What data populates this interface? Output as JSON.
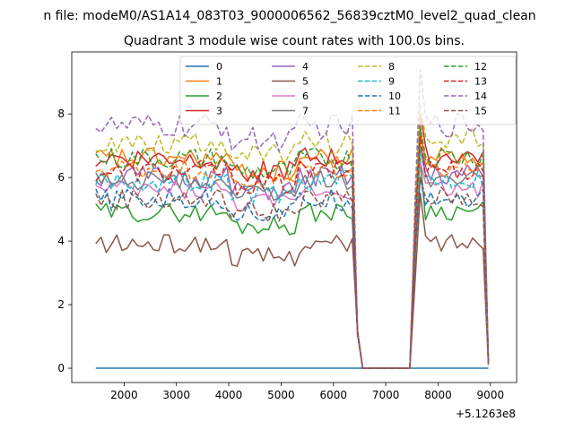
{
  "chart_data": {
    "type": "line",
    "suptitle": "n file: modeM0/AS1A14_083T03_9000006562_56839cztM0_level2_quad_clean",
    "title": "Quadrant 3 module wise count rates with 100.0s bins.",
    "xlabel": "",
    "ylabel": "",
    "x_offset_label": "+5.1263e8",
    "xlim": [
      1000,
      9500
    ],
    "ylim": [
      -0.45,
      9.95
    ],
    "xticks": [
      2000,
      3000,
      4000,
      5000,
      6000,
      7000,
      8000,
      9000
    ],
    "yticks": [
      0,
      2,
      4,
      6,
      8
    ],
    "grid": false,
    "legend_position": "top-center",
    "legend_columns": 4,
    "x_start": 1460,
    "x_step": 100,
    "gap": {
      "end_data": 6360,
      "drop": [
        6460,
        6560
      ],
      "zero_until": 7460,
      "rise": 7560,
      "resume": 7660,
      "end": 8960
    },
    "series": [
      {
        "name": "0",
        "color": "#1f77b4",
        "dashed": false,
        "mean": 0.0,
        "noise": 0.0,
        "seed": 0,
        "peak": 0.0
      },
      {
        "name": "1",
        "color": "#ff7f0e",
        "dashed": false,
        "mean": 6.6,
        "noise": 0.35,
        "seed": 11,
        "peak": 7.6
      },
      {
        "name": "2",
        "color": "#2ca02c",
        "dashed": false,
        "mean": 4.9,
        "noise": 0.3,
        "seed": 22,
        "peak": 6.6
      },
      {
        "name": "3",
        "color": "#d62728",
        "dashed": false,
        "mean": 6.6,
        "noise": 0.35,
        "seed": 33,
        "peak": 8.0
      },
      {
        "name": "4",
        "color": "#9467bd",
        "dashed": false,
        "mean": 6.0,
        "noise": 0.35,
        "seed": 44,
        "peak": 7.0
      },
      {
        "name": "5",
        "color": "#8c564b",
        "dashed": false,
        "mean": 3.9,
        "noise": 0.3,
        "seed": 55,
        "peak": 5.5
      },
      {
        "name": "6",
        "color": "#e377c2",
        "dashed": false,
        "mean": 5.6,
        "noise": 0.3,
        "seed": 66,
        "peak": 6.5
      },
      {
        "name": "7",
        "color": "#7f7f7f",
        "dashed": false,
        "mean": 5.9,
        "noise": 0.3,
        "seed": 77,
        "peak": 7.0
      },
      {
        "name": "8",
        "color": "#bcbd22",
        "dashed": true,
        "mean": 7.1,
        "noise": 0.35,
        "seed": 88,
        "peak": 8.3
      },
      {
        "name": "9",
        "color": "#17becf",
        "dashed": true,
        "mean": 5.9,
        "noise": 0.35,
        "seed": 99,
        "peak": 6.9
      },
      {
        "name": "10",
        "color": "#1f77b4",
        "dashed": true,
        "mean": 5.3,
        "noise": 0.35,
        "seed": 101,
        "peak": 6.0
      },
      {
        "name": "11",
        "color": "#ff7f0e",
        "dashed": true,
        "mean": 6.3,
        "noise": 0.35,
        "seed": 111,
        "peak": 7.3
      },
      {
        "name": "12",
        "color": "#2ca02c",
        "dashed": true,
        "mean": 6.6,
        "noise": 0.35,
        "seed": 121,
        "peak": 7.6
      },
      {
        "name": "13",
        "color": "#d62728",
        "dashed": true,
        "mean": 6.2,
        "noise": 0.35,
        "seed": 131,
        "peak": 7.3
      },
      {
        "name": "14",
        "color": "#9467bd",
        "dashed": true,
        "mean": 7.6,
        "noise": 0.4,
        "seed": 141,
        "peak": 9.4
      },
      {
        "name": "15",
        "color": "#8c564b",
        "dashed": true,
        "mean": 5.3,
        "noise": 0.35,
        "seed": 151,
        "peak": 6.0
      }
    ]
  }
}
